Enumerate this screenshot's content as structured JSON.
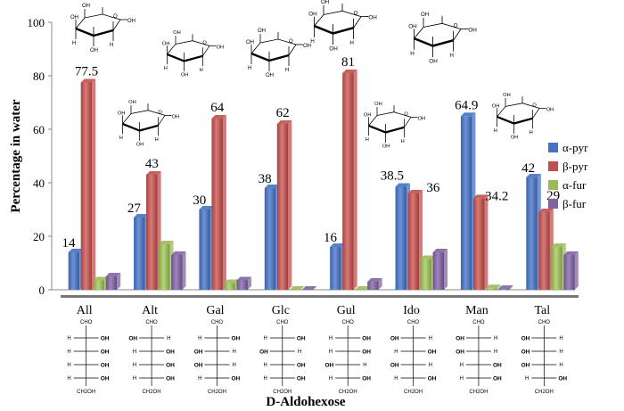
{
  "chart_data": {
    "type": "bar",
    "title": "",
    "xlabel": "D-Aldohexose",
    "ylabel": "Percentage in water",
    "ylim": [
      0,
      100
    ],
    "yticks": [
      0,
      20,
      40,
      60,
      80,
      100
    ],
    "grid": false,
    "legend_position": "right",
    "categories": [
      "All",
      "Alt",
      "Gal",
      "Glc",
      "Gul",
      "Ido",
      "Man",
      "Tal"
    ],
    "series": [
      {
        "name": "α-pyr",
        "color": "#4472C4",
        "values": [
          14,
          27,
          30,
          38,
          16,
          38.5,
          64.9,
          42
        ]
      },
      {
        "name": "β-pyr",
        "color": "#C0504D",
        "values": [
          77.5,
          43,
          64,
          62,
          81,
          36,
          34.2,
          29
        ]
      },
      {
        "name": "α-fur",
        "color": "#9BBB59",
        "values": [
          3.5,
          17,
          2.5,
          0,
          0,
          11.5,
          0.6,
          16
        ]
      },
      {
        "name": "β-fur",
        "color": "#8064A2",
        "values": [
          5,
          13,
          3.5,
          0,
          3,
          14,
          0.3,
          13
        ]
      }
    ],
    "data_labels": [
      {
        "category": "All",
        "series": "α-pyr",
        "text": "14"
      },
      {
        "category": "All",
        "series": "β-pyr",
        "text": "77.5"
      },
      {
        "category": "Alt",
        "series": "α-pyr",
        "text": "27"
      },
      {
        "category": "Alt",
        "series": "β-pyr",
        "text": "43"
      },
      {
        "category": "Gal",
        "series": "α-pyr",
        "text": "30"
      },
      {
        "category": "Gal",
        "series": "β-pyr",
        "text": "64"
      },
      {
        "category": "Glc",
        "series": "α-pyr",
        "text": "38"
      },
      {
        "category": "Glc",
        "series": "β-pyr",
        "text": "62"
      },
      {
        "category": "Gul",
        "series": "α-pyr",
        "text": "16"
      },
      {
        "category": "Gul",
        "series": "β-pyr",
        "text": "81"
      },
      {
        "category": "Ido",
        "series": "α-pyr",
        "text": "38.5"
      },
      {
        "category": "Ido",
        "series": "β-pyr",
        "text": "36"
      },
      {
        "category": "Man",
        "series": "α-pyr",
        "text": "64.9"
      },
      {
        "category": "Man",
        "series": "β-pyr",
        "text": "34.2"
      },
      {
        "category": "Tal",
        "series": "α-pyr",
        "text": "42"
      },
      {
        "category": "Tal",
        "series": "β-pyr",
        "text": "29"
      }
    ],
    "fischer_projections": {
      "top": "CHO",
      "bottom": "CH2OH",
      "substituent": "OH",
      "hydrogen": "H",
      "rows_note": "OH side per stereocenter (C2..C5)",
      "configs": {
        "All": [
          "R",
          "R",
          "R",
          "R"
        ],
        "Alt": [
          "L",
          "R",
          "R",
          "R"
        ],
        "Gal": [
          "R",
          "L",
          "L",
          "R"
        ],
        "Glc": [
          "R",
          "L",
          "R",
          "R"
        ],
        "Gul": [
          "R",
          "R",
          "L",
          "R"
        ],
        "Ido": [
          "L",
          "R",
          "L",
          "R"
        ],
        "Man": [
          "L",
          "L",
          "R",
          "R"
        ],
        "Tal": [
          "L",
          "L",
          "L",
          "R"
        ]
      }
    },
    "structure_labels": {
      "hydroxyl": "OH",
      "hydrogen": "H",
      "ring_oxygen": "O"
    }
  }
}
